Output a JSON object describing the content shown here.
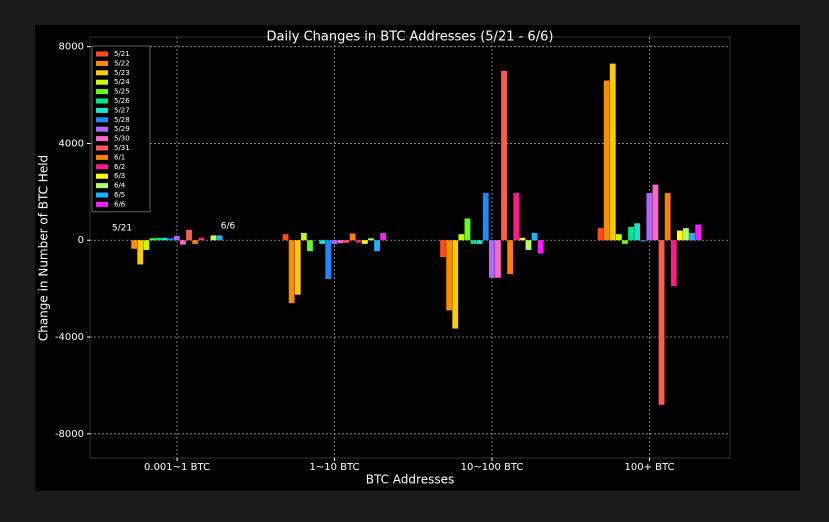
{
  "chart_data": {
    "type": "bar",
    "title": "Daily Changes in BTC Addresses (5/21 - 6/6)",
    "xlabel": "BTC Addresses",
    "ylabel": "Change in Number of BTC Held",
    "categories": [
      "0.001~1 BTC",
      "1~10 BTC",
      "10~100 BTC",
      "100+ BTC"
    ],
    "annotations": [
      "5/21",
      "6/6"
    ],
    "ylim": [
      -9000,
      8400
    ],
    "yticks": [
      -8000,
      -4000,
      0,
      4000,
      8000
    ],
    "grid": true,
    "legend": "upper left",
    "series": [
      {
        "name": "5/21",
        "color": "#ff4d1a",
        "values": [
          0,
          250,
          -700,
          500
        ]
      },
      {
        "name": "5/22",
        "color": "#ff8c00",
        "values": [
          -350,
          -2600,
          -2900,
          6600
        ]
      },
      {
        "name": "5/23",
        "color": "#ffcc00",
        "values": [
          -1000,
          -2250,
          -3650,
          7300
        ]
      },
      {
        "name": "5/24",
        "color": "#c8ff00",
        "values": [
          -400,
          300,
          250,
          250
        ]
      },
      {
        "name": "5/25",
        "color": "#66ff1a",
        "values": [
          80,
          -450,
          900,
          -150
        ]
      },
      {
        "name": "5/26",
        "color": "#00e68a",
        "values": [
          100,
          0,
          -150,
          550
        ]
      },
      {
        "name": "5/27",
        "color": "#19e6c8",
        "values": [
          100,
          -150,
          -150,
          700
        ]
      },
      {
        "name": "5/28",
        "color": "#1a8cff",
        "values": [
          80,
          -1600,
          1950,
          -50
        ]
      },
      {
        "name": "5/29",
        "color": "#b266ff",
        "values": [
          180,
          -150,
          -1550,
          1950
        ]
      },
      {
        "name": "5/30",
        "color": "#ff66cc",
        "values": [
          -180,
          -120,
          -1550,
          2300
        ]
      },
      {
        "name": "5/31",
        "color": "#ff5c4d",
        "values": [
          430,
          -100,
          7000,
          -6800
        ]
      },
      {
        "name": "6/1",
        "color": "#ff8000",
        "values": [
          -150,
          280,
          -1400,
          1950
        ]
      },
      {
        "name": "6/2",
        "color": "#ff1a8c",
        "values": [
          100,
          -100,
          1950,
          -1900
        ]
      },
      {
        "name": "6/3",
        "color": "#ffff00",
        "values": [
          0,
          -150,
          100,
          400
        ]
      },
      {
        "name": "6/4",
        "color": "#b3ff66",
        "values": [
          200,
          80,
          -400,
          500
        ]
      },
      {
        "name": "6/5",
        "color": "#1ab3ff",
        "values": [
          200,
          -450,
          300,
          300
        ]
      },
      {
        "name": "6/6",
        "color": "#ff1aff",
        "values": [
          0,
          300,
          -550,
          650
        ]
      }
    ]
  }
}
